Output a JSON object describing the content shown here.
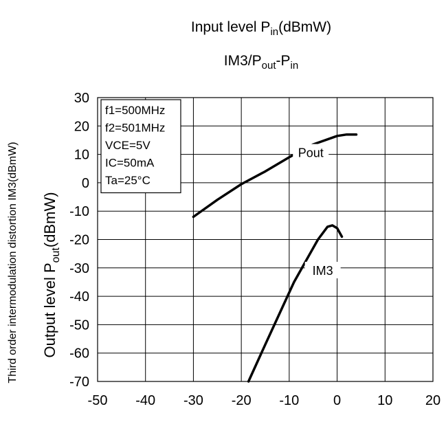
{
  "chart_data": {
    "type": "line",
    "title": {
      "main_prefix": "Input level P",
      "main_sub": "in",
      "main_suffix": "(dBmW)",
      "sub_prefix": "IM3/P",
      "sub_sub1": "out",
      "sub_mid": "-P",
      "sub_sub2": "in"
    },
    "ylabel_outer": "Third order intermodulation distortion IM3(dBmW)",
    "ylabel_inner": {
      "prefix": "Output level P",
      "sub": "out",
      "suffix": "(dBmW)"
    },
    "xlim": [
      -50,
      20
    ],
    "ylim": [
      -70,
      30
    ],
    "x_ticks": [
      "-50",
      "-40",
      "-30",
      "-20",
      "-10",
      "0",
      "10",
      "20"
    ],
    "y_ticks": [
      "30",
      "20",
      "10",
      "0",
      "-10",
      "-20",
      "-30",
      "-40",
      "-50",
      "-60",
      "-70"
    ],
    "grid": true,
    "conditions": [
      "f1=500MHz",
      "f2=501MHz",
      "VCE=5V",
      "IC=50mA",
      "Ta=25°C"
    ],
    "series": [
      {
        "name": "Pout",
        "x": [
          -30,
          -25,
          -20,
          -15,
          -10,
          -5,
          0,
          2,
          4
        ],
        "y": [
          -12,
          -6,
          -0.5,
          4,
          9,
          13.5,
          16.5,
          17,
          17
        ]
      },
      {
        "name": "IM3",
        "x": [
          -18.5,
          -15,
          -12,
          -9,
          -6,
          -4,
          -2,
          -1,
          0,
          1
        ],
        "y": [
          -70,
          -57,
          -46,
          -35,
          -26,
          -20,
          -15.5,
          -15,
          -16,
          -19
        ]
      }
    ],
    "annotations": [
      {
        "text": "Pout",
        "x": -5.5,
        "y": 10.5
      },
      {
        "text": "IM3",
        "x": -3,
        "y": -31
      }
    ]
  }
}
